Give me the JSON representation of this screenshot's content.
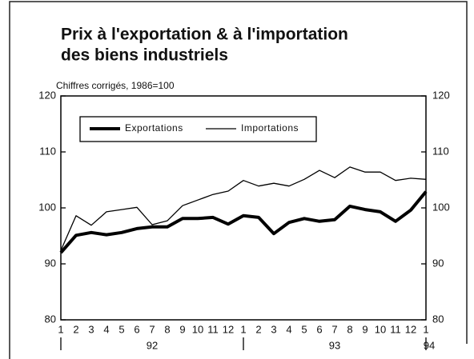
{
  "chart_data": {
    "type": "line",
    "title": [
      "Prix à l'exportation & à l'importation",
      "des biens industriels"
    ],
    "subtitle": "Chiffres corrigés, 1986=100",
    "categories": [
      "1",
      "2",
      "3",
      "4",
      "5",
      "6",
      "7",
      "8",
      "9",
      "10",
      "11",
      "12",
      "1",
      "2",
      "3",
      "4",
      "5",
      "6",
      "7",
      "8",
      "9",
      "10",
      "11",
      "12",
      "1"
    ],
    "year_labels": [
      "92",
      "93",
      "94"
    ],
    "series": [
      {
        "name": "Exportations",
        "color": "#000000",
        "width": 4,
        "values": [
          92,
          95.1,
          95.6,
          95.2,
          95.6,
          96.3,
          96.6,
          96.6,
          98.1,
          98.1,
          98.3,
          97.1,
          98.6,
          98.3,
          95.4,
          97.4,
          98.1,
          97.6,
          97.9,
          100.3,
          99.7,
          99.3,
          97.6,
          99.6,
          102.9
        ]
      },
      {
        "name": "Importations",
        "color": "#000000",
        "width": 1.3,
        "values": [
          92.4,
          98.6,
          96.9,
          99.3,
          99.7,
          100.1,
          97,
          97.7,
          100.4,
          101.4,
          102.4,
          103,
          104.9,
          103.9,
          104.4,
          103.9,
          105.1,
          106.7,
          105.4,
          107.3,
          106.4,
          106.4,
          104.9,
          105.3,
          105.1
        ]
      }
    ],
    "ylim": [
      80,
      120
    ],
    "yticks": [
      80,
      90,
      100,
      110,
      120
    ],
    "y2lim": [
      80,
      120
    ],
    "y2ticks": [
      80,
      90,
      100,
      110,
      120
    ]
  }
}
